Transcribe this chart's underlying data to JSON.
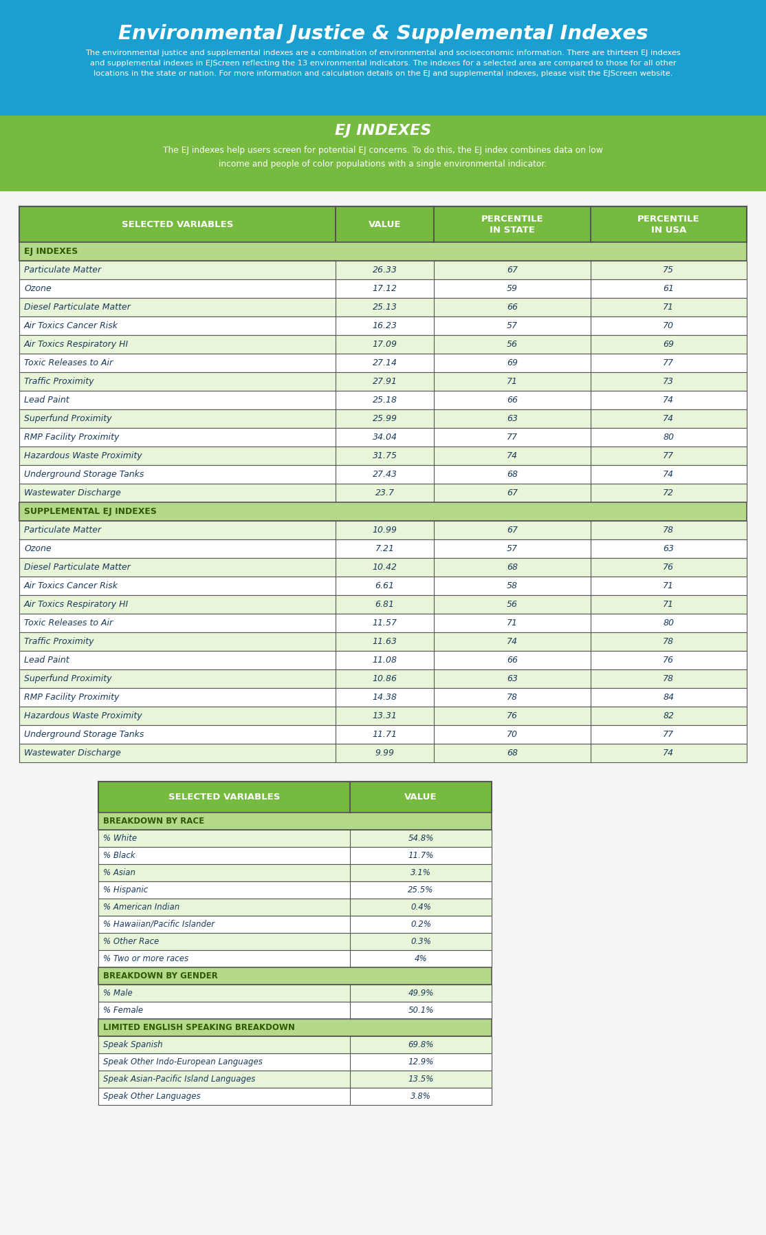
{
  "title": "Environmental Justice & Supplemental Indexes",
  "title_subtitle": "The environmental justice and supplemental indexes are a combination of environmental and socioeconomic information. There are thirteen EJ indexes\nand supplemental indexes in EJScreen reflecting the 13 environmental indicators. The indexes for a selected area are compared to those for all other\nlocations in the state or nation. For more information and calculation details on the EJ and supplemental indexes, please visit the EJScreen website.",
  "header_bg": "#1a9fd0",
  "ej_section_title": "EJ INDEXES",
  "ej_section_subtitle": "The EJ indexes help users screen for potential EJ concerns. To do this, the EJ index combines data on low\nincome and people of color populations with a single environmental indicator.",
  "ej_section_bg": "#76bb3f",
  "table1_headers": [
    "SELECTED VARIABLES",
    "VALUE",
    "PERCENTILE\nIN STATE",
    "PERCENTILE\nIN USA"
  ],
  "table1_header_bg": "#76bb3f",
  "table1_section_ej": "EJ INDEXES",
  "table1_section_sup": "SUPPLEMENTAL EJ INDEXES",
  "table1_section_bg": "#b5d98a",
  "table1_row_bg_alt": "#e8f5d8",
  "table1_row_bg_white": "#ffffff",
  "table1_border": "#555555",
  "ej_rows": [
    [
      "Particulate Matter",
      "26.33",
      "67",
      "75"
    ],
    [
      "Ozone",
      "17.12",
      "59",
      "61"
    ],
    [
      "Diesel Particulate Matter",
      "25.13",
      "66",
      "71"
    ],
    [
      "Air Toxics Cancer Risk",
      "16.23",
      "57",
      "70"
    ],
    [
      "Air Toxics Respiratory HI",
      "17.09",
      "56",
      "69"
    ],
    [
      "Toxic Releases to Air",
      "27.14",
      "69",
      "77"
    ],
    [
      "Traffic Proximity",
      "27.91",
      "71",
      "73"
    ],
    [
      "Lead Paint",
      "25.18",
      "66",
      "74"
    ],
    [
      "Superfund Proximity",
      "25.99",
      "63",
      "74"
    ],
    [
      "RMP Facility Proximity",
      "34.04",
      "77",
      "80"
    ],
    [
      "Hazardous Waste Proximity",
      "31.75",
      "74",
      "77"
    ],
    [
      "Underground Storage Tanks",
      "27.43",
      "68",
      "74"
    ],
    [
      "Wastewater Discharge",
      "23.7",
      "67",
      "72"
    ]
  ],
  "sup_rows": [
    [
      "Particulate Matter",
      "10.99",
      "67",
      "78"
    ],
    [
      "Ozone",
      "7.21",
      "57",
      "63"
    ],
    [
      "Diesel Particulate Matter",
      "10.42",
      "68",
      "76"
    ],
    [
      "Air Toxics Cancer Risk",
      "6.61",
      "58",
      "71"
    ],
    [
      "Air Toxics Respiratory HI",
      "6.81",
      "56",
      "71"
    ],
    [
      "Toxic Releases to Air",
      "11.57",
      "71",
      "80"
    ],
    [
      "Traffic Proximity",
      "11.63",
      "74",
      "78"
    ],
    [
      "Lead Paint",
      "11.08",
      "66",
      "76"
    ],
    [
      "Superfund Proximity",
      "10.86",
      "63",
      "78"
    ],
    [
      "RMP Facility Proximity",
      "14.38",
      "78",
      "84"
    ],
    [
      "Hazardous Waste Proximity",
      "13.31",
      "76",
      "82"
    ],
    [
      "Underground Storage Tanks",
      "11.71",
      "70",
      "77"
    ],
    [
      "Wastewater Discharge",
      "9.99",
      "68",
      "74"
    ]
  ],
  "table2_headers": [
    "SELECTED VARIABLES",
    "VALUE"
  ],
  "table2_header_bg": "#76bb3f",
  "table2_section_race": "BREAKDOWN BY RACE",
  "table2_section_gender": "BREAKDOWN BY GENDER",
  "table2_section_lang": "LIMITED ENGLISH SPEAKING BREAKDOWN",
  "table2_section_bg": "#b5d98a",
  "race_rows": [
    [
      "% White",
      "54.8%"
    ],
    [
      "% Black",
      "11.7%"
    ],
    [
      "% Asian",
      "3.1%"
    ],
    [
      "% Hispanic",
      "25.5%"
    ],
    [
      "% American Indian",
      "0.4%"
    ],
    [
      "% Hawaiian/Pacific Islander",
      "0.2%"
    ],
    [
      "% Other Race",
      "0.3%"
    ],
    [
      "% Two or more races",
      "4%"
    ]
  ],
  "gender_rows": [
    [
      "% Male",
      "49.9%"
    ],
    [
      "% Female",
      "50.1%"
    ]
  ],
  "lang_rows": [
    [
      "Speak Spanish",
      "69.8%"
    ],
    [
      "Speak Other Indo-European Languages",
      "12.9%"
    ],
    [
      "Speak Asian-Pacific Island Languages",
      "13.5%"
    ],
    [
      "Speak Other Languages",
      "3.8%"
    ]
  ],
  "bg_color": "#f5f5f5",
  "text_cell": "#1a3a5c",
  "text_green_dark": "#2d5a00"
}
